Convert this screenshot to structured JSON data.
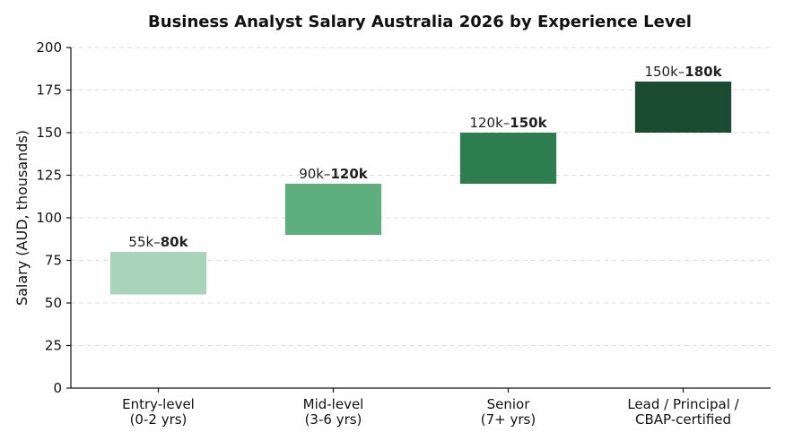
{
  "chart_data": {
    "type": "bar",
    "title": "Business Analyst Salary Australia 2026 by Experience Level",
    "xlabel": "",
    "ylabel": "Salary (AUD, thousands)",
    "ylim": [
      0,
      200
    ],
    "yticks": [
      0,
      25,
      50,
      75,
      100,
      125,
      150,
      175,
      200
    ],
    "grid": "y-dashed",
    "categories": [
      [
        "Entry-level",
        "(0-2 yrs)"
      ],
      [
        "Mid-level",
        "(3-6 yrs)"
      ],
      [
        "Senior",
        "(7+ yrs)"
      ],
      [
        "Lead / Principal /",
        "CBAP-certified"
      ]
    ],
    "ranges": [
      {
        "low": 55,
        "high": 80,
        "label_low": "55k–",
        "label_high": "80k",
        "color": "#a8d5ba"
      },
      {
        "low": 90,
        "high": 120,
        "label_low": "90k–",
        "label_high": "120k",
        "color": "#5fae7e"
      },
      {
        "low": 120,
        "high": 150,
        "label_low": "120k–",
        "label_high": "150k",
        "color": "#2e7d4f"
      },
      {
        "low": 150,
        "high": 180,
        "label_low": "150k–",
        "label_high": "180k",
        "color": "#1b4b30"
      }
    ]
  }
}
